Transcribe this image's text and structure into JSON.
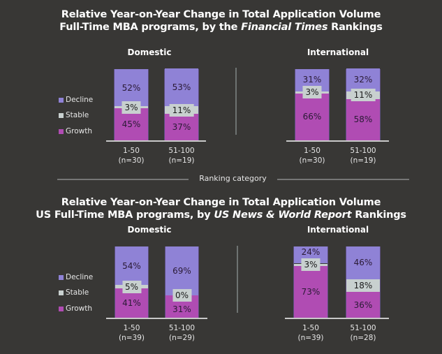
{
  "colors": {
    "background": "#383735",
    "decline": "#8f82d6",
    "stable": "#c8d0cf",
    "growth": "#b04cb3"
  },
  "axis_title": "Ranking category",
  "chart_data": [
    {
      "type": "bar",
      "stacked": true,
      "title_line1": "Relative Year-on-Year Change in Total Application Volume",
      "title_line2_pre": "Full-Time MBA programs, by the ",
      "title_line2_italic": "Financial Times",
      "title_line2_post": " Rankings",
      "xlabel": "Ranking category",
      "ylim": [
        0,
        100
      ],
      "legend": [
        "Decline",
        "Stable",
        "Growth"
      ],
      "legend_placement": "left",
      "panels": [
        {
          "title": "Domestic",
          "categories": [
            {
              "label": "1-50",
              "n": "(n=30)"
            },
            {
              "label": "51-100",
              "n": "(n=19)"
            }
          ],
          "series": [
            {
              "name": "Growth",
              "values": [
                45,
                37
              ]
            },
            {
              "name": "Stable",
              "values": [
                3,
                11
              ]
            },
            {
              "name": "Decline",
              "values": [
                52,
                53
              ]
            }
          ]
        },
        {
          "title": "International",
          "categories": [
            {
              "label": "1-50",
              "n": "(n=30)"
            },
            {
              "label": "51-100",
              "n": "(n=19)"
            }
          ],
          "series": [
            {
              "name": "Growth",
              "values": [
                66,
                58
              ]
            },
            {
              "name": "Stable",
              "values": [
                3,
                11
              ]
            },
            {
              "name": "Decline",
              "values": [
                31,
                32
              ]
            }
          ]
        }
      ]
    },
    {
      "type": "bar",
      "stacked": true,
      "title_line1": "Relative Year-on-Year Change in Total Application Volume",
      "title_line2_pre": "US Full-Time MBA programs, by ",
      "title_line2_italic": "US News & World Report",
      "title_line2_post": " Rankings",
      "ylim": [
        0,
        100
      ],
      "legend": [
        "Decline",
        "Stable",
        "Growth"
      ],
      "legend_placement": "left",
      "panels": [
        {
          "title": "Domestic",
          "categories": [
            {
              "label": "1-50",
              "n": "(n=39)"
            },
            {
              "label": "51-100",
              "n": "(n=29)"
            }
          ],
          "series": [
            {
              "name": "Growth",
              "values": [
                41,
                31
              ]
            },
            {
              "name": "Stable",
              "values": [
                5,
                0
              ]
            },
            {
              "name": "Decline",
              "values": [
                54,
                69
              ]
            }
          ]
        },
        {
          "title": "International",
          "categories": [
            {
              "label": "1-50",
              "n": "(n=39)"
            },
            {
              "label": "51-100",
              "n": "(n=28)"
            }
          ],
          "series": [
            {
              "name": "Growth",
              "values": [
                73,
                36
              ]
            },
            {
              "name": "Stable",
              "values": [
                3,
                18
              ]
            },
            {
              "name": "Decline",
              "values": [
                24,
                46
              ]
            }
          ]
        }
      ]
    }
  ]
}
